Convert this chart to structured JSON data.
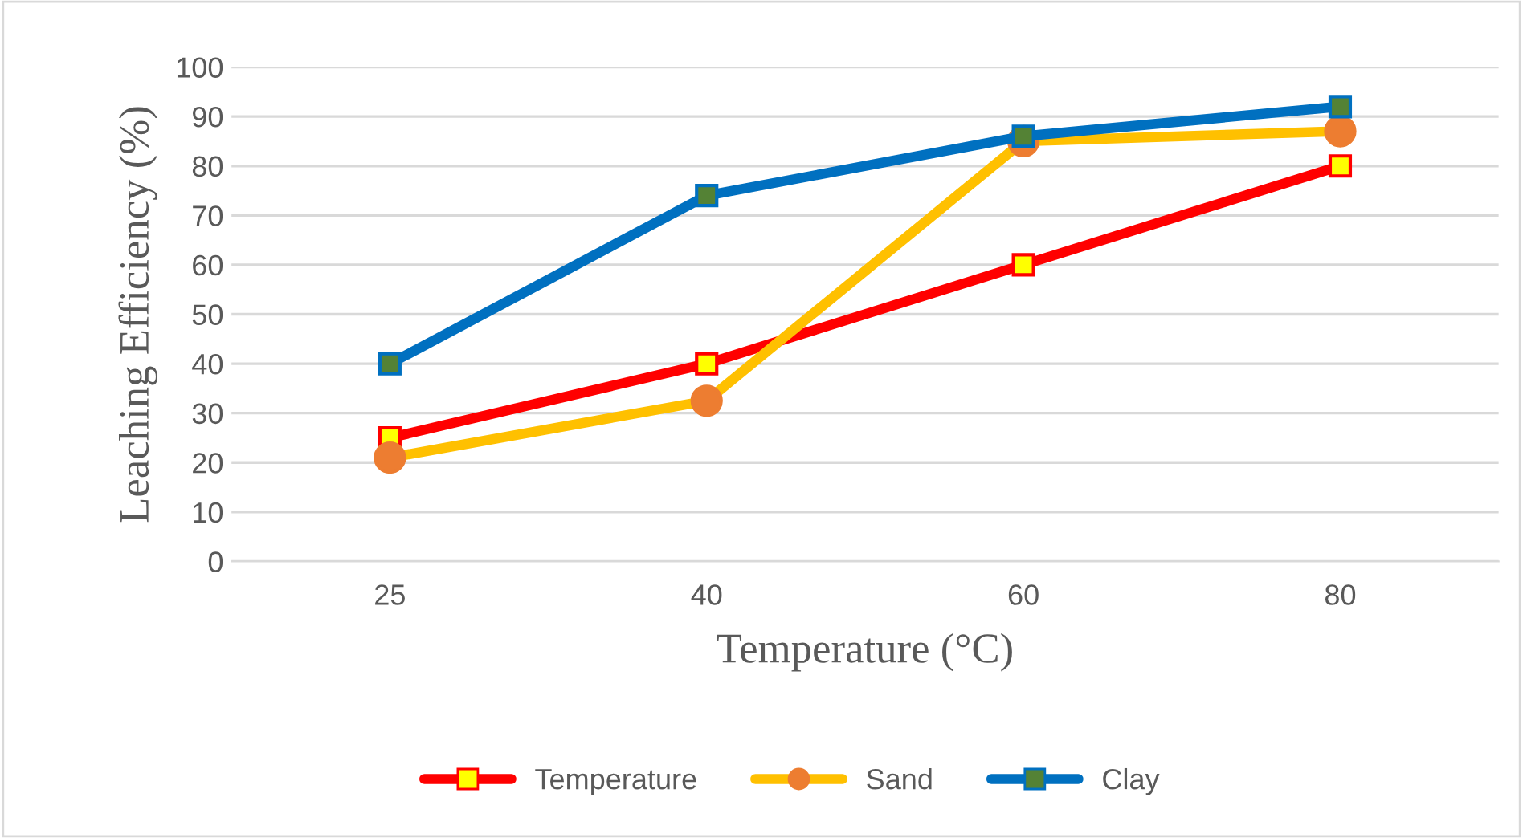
{
  "chart_data": {
    "type": "line",
    "xlabel": "Temperature (°C)",
    "ylabel": "Leaching Efficiency (%)",
    "categories": [
      "25",
      "40",
      "60",
      "80"
    ],
    "series": [
      {
        "name": "Temperature",
        "color": "#ff0000",
        "marker": "square",
        "colors": [
          "#ffff00",
          "#ffff00",
          "#ffff00",
          "#ffff00"
        ],
        "values": [
          25,
          40,
          60,
          80
        ]
      },
      {
        "name": "Sand",
        "color": "#ffc000",
        "marker": "circle",
        "colors": [
          "#ed7d31",
          "#ed7d31",
          "#ed7d31",
          "#ed7d31"
        ],
        "values": [
          21,
          32.5,
          85,
          87
        ]
      },
      {
        "name": "Clay",
        "color": "#0070c0",
        "marker": "square",
        "colors": [
          "#548235",
          "#548235",
          "#548235",
          "#548235"
        ],
        "values": [
          40,
          74,
          86,
          92
        ]
      }
    ],
    "ylim": [
      0,
      100
    ],
    "yticks": [
      0,
      10,
      20,
      30,
      40,
      50,
      60,
      70,
      80,
      90,
      100
    ],
    "grid": "y",
    "legend": "bottom",
    "line_style": "solid"
  }
}
